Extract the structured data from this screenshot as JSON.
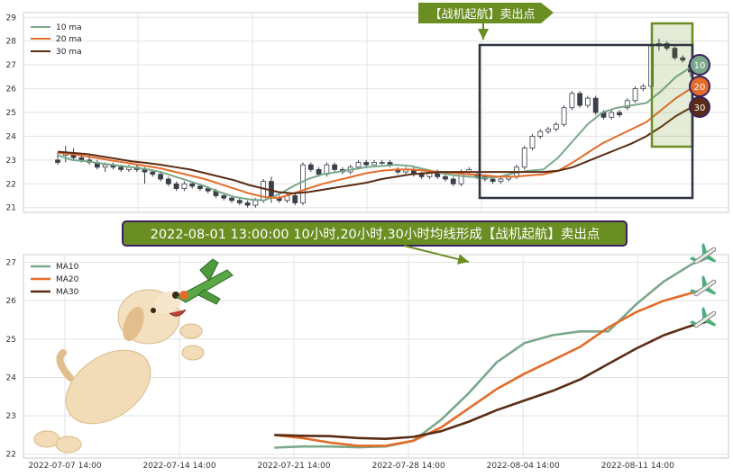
{
  "charts": {
    "top": {
      "title": "【战机起航】卖出点",
      "legend": [
        "10 ma",
        "20 ma",
        "30 ma"
      ],
      "badges": [
        "10",
        "20",
        "30"
      ]
    },
    "bottom": {
      "annotation": "2022-08-01 13:00:00 10小时,20小时,30小时均线形成【战机起航】卖出点",
      "legend": [
        "MA10",
        "MA20",
        "MA30"
      ]
    }
  },
  "colors": {
    "ma10": "#7aa88a",
    "ma20": "#e36c2a",
    "ma30": "#5a2c14",
    "highlight": "#6b8e23",
    "frame": "#2f3540",
    "badge_border": "#3b1f5e"
  },
  "icons": [
    "dog-icon",
    "fighter-jet-icon",
    "airplane-icon"
  ],
  "chart_data": [
    {
      "type": "line",
      "name": "top-candlestick-with-ma",
      "legend_position": "top-left",
      "grid": true,
      "ylim": [
        20.8,
        29.2
      ],
      "yticks": [
        21,
        22,
        23,
        24,
        25,
        26,
        27,
        28,
        29
      ],
      "candles": [
        [
          23.0,
          23.3,
          22.8,
          22.9
        ],
        [
          23.2,
          23.6,
          22.9,
          23.3
        ],
        [
          23.3,
          23.5,
          23.0,
          23.1
        ],
        [
          23.1,
          23.3,
          22.9,
          23.0
        ],
        [
          23.0,
          23.2,
          22.8,
          22.9
        ],
        [
          22.9,
          23.0,
          22.6,
          22.7
        ],
        [
          22.7,
          22.9,
          22.5,
          22.8
        ],
        [
          22.8,
          22.9,
          22.6,
          22.7
        ],
        [
          22.7,
          22.8,
          22.5,
          22.6
        ],
        [
          22.6,
          22.8,
          22.5,
          22.7
        ],
        [
          22.7,
          22.8,
          22.5,
          22.6
        ],
        [
          22.6,
          22.7,
          22.0,
          22.5
        ],
        [
          22.5,
          22.6,
          22.3,
          22.4
        ],
        [
          22.4,
          22.5,
          22.1,
          22.2
        ],
        [
          22.2,
          22.3,
          21.9,
          22.0
        ],
        [
          22.0,
          22.1,
          21.7,
          21.8
        ],
        [
          21.8,
          22.1,
          21.7,
          22.0
        ],
        [
          22.0,
          22.1,
          21.8,
          21.9
        ],
        [
          21.9,
          22.0,
          21.7,
          21.8
        ],
        [
          21.8,
          21.9,
          21.6,
          21.7
        ],
        [
          21.7,
          21.8,
          21.4,
          21.5
        ],
        [
          21.5,
          21.6,
          21.3,
          21.4
        ],
        [
          21.4,
          21.5,
          21.2,
          21.3
        ],
        [
          21.3,
          21.4,
          21.1,
          21.2
        ],
        [
          21.2,
          21.3,
          21.0,
          21.1
        ],
        [
          21.1,
          21.4,
          21.0,
          21.3
        ],
        [
          21.3,
          22.2,
          21.2,
          22.1
        ],
        [
          22.1,
          22.3,
          21.2,
          21.4
        ],
        [
          21.4,
          21.5,
          21.2,
          21.3
        ],
        [
          21.3,
          21.6,
          21.2,
          21.5
        ],
        [
          21.5,
          21.6,
          21.1,
          21.2
        ],
        [
          21.2,
          22.9,
          21.1,
          22.8
        ],
        [
          22.8,
          22.9,
          22.5,
          22.6
        ],
        [
          22.6,
          22.7,
          22.3,
          22.4
        ],
        [
          22.4,
          22.9,
          22.3,
          22.8
        ],
        [
          22.8,
          22.9,
          22.5,
          22.6
        ],
        [
          22.6,
          22.7,
          22.4,
          22.5
        ],
        [
          22.5,
          22.8,
          22.4,
          22.7
        ],
        [
          22.7,
          23.0,
          22.6,
          22.9
        ],
        [
          22.9,
          23.0,
          22.7,
          22.8
        ],
        [
          22.8,
          23.0,
          22.8,
          22.9
        ],
        [
          22.9,
          23.0,
          22.8,
          22.9
        ],
        [
          22.9,
          23.0,
          22.7,
          22.8
        ],
        [
          22.6,
          22.7,
          22.4,
          22.5
        ],
        [
          22.5,
          22.7,
          22.4,
          22.6
        ],
        [
          22.6,
          22.7,
          22.3,
          22.4
        ],
        [
          22.4,
          22.5,
          22.2,
          22.3
        ],
        [
          22.3,
          22.6,
          22.2,
          22.5
        ],
        [
          22.5,
          22.6,
          22.2,
          22.3
        ],
        [
          22.3,
          22.4,
          22.1,
          22.2
        ],
        [
          22.2,
          22.3,
          21.9,
          22.0
        ],
        [
          22.0,
          22.6,
          21.9,
          22.5
        ],
        [
          22.5,
          22.7,
          22.4,
          22.6
        ],
        [
          22.4,
          22.5,
          22.2,
          22.3
        ],
        [
          22.3,
          22.4,
          22.1,
          22.2
        ],
        [
          22.2,
          22.3,
          22.0,
          22.1
        ],
        [
          22.1,
          22.3,
          22.0,
          22.2
        ],
        [
          22.2,
          22.4,
          22.1,
          22.3
        ],
        [
          22.3,
          22.8,
          22.2,
          22.7
        ],
        [
          22.7,
          23.6,
          22.6,
          23.5
        ],
        [
          23.5,
          24.1,
          23.4,
          24.0
        ],
        [
          24.0,
          24.3,
          23.9,
          24.2
        ],
        [
          24.2,
          24.4,
          24.1,
          24.3
        ],
        [
          24.3,
          24.6,
          24.2,
          24.5
        ],
        [
          24.5,
          25.3,
          24.4,
          25.2
        ],
        [
          25.2,
          25.9,
          25.1,
          25.8
        ],
        [
          25.8,
          25.9,
          25.2,
          25.3
        ],
        [
          25.3,
          25.7,
          25.2,
          25.6
        ],
        [
          25.6,
          25.7,
          24.9,
          25.0
        ],
        [
          25.0,
          25.1,
          24.7,
          24.8
        ],
        [
          24.8,
          25.1,
          24.7,
          25.0
        ],
        [
          25.0,
          25.1,
          24.8,
          24.9
        ],
        [
          25.2,
          25.6,
          25.1,
          25.5
        ],
        [
          25.5,
          26.1,
          25.4,
          26.0
        ],
        [
          26.0,
          26.2,
          25.9,
          26.1
        ],
        [
          26.1,
          27.9,
          26.0,
          27.8
        ],
        [
          27.8,
          28.1,
          27.6,
          27.9
        ],
        [
          27.9,
          28.0,
          27.6,
          27.7
        ],
        [
          27.7,
          27.8,
          27.2,
          27.3
        ],
        [
          27.3,
          27.4,
          27.1,
          27.2
        ],
        [
          27.0,
          27.1,
          26.5,
          26.7
        ]
      ],
      "series": [
        {
          "name": "10 ma",
          "values": [
            23.2,
            23.0,
            22.95,
            22.85,
            22.78,
            22.7,
            22.62,
            22.5,
            22.3,
            22.1,
            21.9,
            21.65,
            21.45,
            21.35,
            21.3,
            21.55,
            21.9,
            22.2,
            22.4,
            22.5,
            22.6,
            22.7,
            22.75,
            22.8,
            22.75,
            22.6,
            22.45,
            22.35,
            22.3,
            22.25,
            22.3,
            22.45,
            22.55,
            22.6,
            23.1,
            23.8,
            24.5,
            25.0,
            25.2,
            25.3,
            25.4,
            25.9,
            26.5,
            26.9
          ]
        },
        {
          "name": "20 ma",
          "values": [
            23.3,
            23.25,
            23.15,
            23.05,
            22.95,
            22.85,
            22.75,
            22.65,
            22.5,
            22.35,
            22.2,
            22.0,
            21.8,
            21.6,
            21.45,
            21.4,
            21.6,
            21.8,
            22.0,
            22.15,
            22.3,
            22.45,
            22.55,
            22.6,
            22.6,
            22.55,
            22.5,
            22.45,
            22.4,
            22.35,
            22.3,
            22.3,
            22.35,
            22.4,
            22.55,
            22.9,
            23.3,
            23.7,
            24.0,
            24.3,
            24.6,
            25.1,
            25.6,
            26.0
          ]
        },
        {
          "name": "30 ma",
          "values": [
            23.35,
            23.3,
            23.25,
            23.15,
            23.05,
            22.95,
            22.88,
            22.8,
            22.7,
            22.6,
            22.45,
            22.3,
            22.15,
            21.95,
            21.8,
            21.65,
            21.6,
            21.65,
            21.75,
            21.85,
            21.95,
            22.05,
            22.2,
            22.3,
            22.4,
            22.45,
            22.5,
            22.5,
            22.5,
            22.5,
            22.5,
            22.5,
            22.5,
            22.5,
            22.55,
            22.7,
            22.95,
            23.2,
            23.45,
            23.7,
            24.0,
            24.4,
            24.85,
            25.2
          ]
        }
      ]
    },
    {
      "type": "line",
      "name": "bottom-ma-zoom",
      "legend_position": "top-left",
      "grid": true,
      "ylim": [
        21.9,
        27.2
      ],
      "yticks": [
        22,
        23,
        24,
        25,
        26,
        27
      ],
      "xlim_days": [
        0,
        40
      ],
      "xticks": [
        "2022-07-07 14:00",
        "2022-07-14 14:00",
        "2022-07-21 14:00",
        "2022-07-28 14:00",
        "2022-08-04 14:00",
        "2022-08-11 14:00"
      ],
      "xtick_days": [
        0,
        7,
        14,
        21,
        28,
        35
      ],
      "x_days": [
        12.8,
        14.5,
        16.2,
        17.9,
        19.6,
        21.3,
        23.0,
        24.7,
        26.4,
        28.1,
        29.8,
        31.5,
        33.2,
        34.9,
        36.6,
        38.3,
        39.2
      ],
      "series": [
        {
          "name": "MA10",
          "values": [
            22.17,
            22.2,
            22.2,
            22.18,
            22.2,
            22.35,
            22.9,
            23.6,
            24.4,
            24.9,
            25.1,
            25.2,
            25.2,
            25.9,
            26.5,
            26.95,
            27.1
          ]
        },
        {
          "name": "MA20",
          "values": [
            22.5,
            22.42,
            22.3,
            22.22,
            22.22,
            22.35,
            22.7,
            23.2,
            23.7,
            24.1,
            24.45,
            24.8,
            25.3,
            25.7,
            26.0,
            26.2,
            26.3
          ]
        },
        {
          "name": "MA30",
          "values": [
            22.5,
            22.48,
            22.47,
            22.42,
            22.4,
            22.45,
            22.6,
            22.85,
            23.15,
            23.4,
            23.65,
            23.95,
            24.35,
            24.75,
            25.1,
            25.35,
            25.45
          ]
        }
      ]
    }
  ]
}
